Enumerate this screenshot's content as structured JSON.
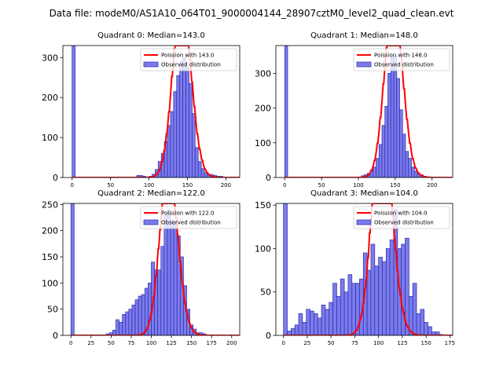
{
  "suptitle": "Data file: modeM0/AS1A10_064T01_9000004144_28907cztM0_level2_quad_clean.evt",
  "colors": {
    "bar_fill": "#7b7bea",
    "bar_edge": "#2b2bb0",
    "poisson_line": "#ff0000",
    "axes": "#000000"
  },
  "chart_data": [
    {
      "type": "bar",
      "title": "Quadrant 0: Median=143.0",
      "xlim": [
        -12,
        218
      ],
      "ylim": [
        0,
        330
      ],
      "xticks": [
        0,
        50,
        100,
        150,
        200
      ],
      "yticks": [
        0,
        100,
        200,
        300
      ],
      "bin_width": 4,
      "bins": [
        [
          0,
          330
        ],
        [
          84,
          5
        ],
        [
          88,
          5
        ],
        [
          92,
          3
        ],
        [
          100,
          3
        ],
        [
          104,
          8
        ],
        [
          108,
          20
        ],
        [
          112,
          40
        ],
        [
          116,
          60
        ],
        [
          120,
          90
        ],
        [
          124,
          130
        ],
        [
          128,
          165
        ],
        [
          132,
          215
        ],
        [
          136,
          255
        ],
        [
          140,
          290
        ],
        [
          144,
          300
        ],
        [
          148,
          275
        ],
        [
          152,
          235
        ],
        [
          156,
          160
        ],
        [
          160,
          75
        ],
        [
          164,
          40
        ],
        [
          168,
          22
        ],
        [
          172,
          12
        ],
        [
          176,
          8
        ],
        [
          180,
          7
        ],
        [
          184,
          5
        ],
        [
          188,
          3
        ],
        [
          192,
          3
        ],
        [
          196,
          1
        ]
      ],
      "poisson_mu": 143.0,
      "poisson_scale": 13300,
      "legend": [
        "Poission with 143.0",
        "Observed distribution"
      ]
    },
    {
      "type": "bar",
      "title": "Quadrant 1: Median=148.0",
      "xlim": [
        -12,
        228
      ],
      "ylim": [
        0,
        380
      ],
      "xticks": [
        0,
        50,
        100,
        150,
        200
      ],
      "yticks": [
        0,
        100,
        200,
        300
      ],
      "bin_width": 4,
      "bins": [
        [
          0,
          380
        ],
        [
          104,
          5
        ],
        [
          108,
          8
        ],
        [
          112,
          12
        ],
        [
          116,
          20
        ],
        [
          120,
          30
        ],
        [
          124,
          55
        ],
        [
          128,
          95
        ],
        [
          132,
          150
        ],
        [
          136,
          205
        ],
        [
          140,
          300
        ],
        [
          144,
          345
        ],
        [
          148,
          350
        ],
        [
          152,
          285
        ],
        [
          156,
          195
        ],
        [
          160,
          125
        ],
        [
          164,
          75
        ],
        [
          168,
          55
        ],
        [
          172,
          30
        ],
        [
          176,
          18
        ],
        [
          180,
          10
        ],
        [
          184,
          8
        ],
        [
          188,
          4
        ],
        [
          192,
          2
        ]
      ],
      "poisson_mu": 148.0,
      "poisson_scale": 15500,
      "legend": [
        "Poission with 148.0",
        "Observed distribution"
      ]
    },
    {
      "type": "bar",
      "title": "Quadrant 2: Median=122.0",
      "xlim": [
        -10,
        210
      ],
      "ylim": [
        0,
        252
      ],
      "xticks": [
        0,
        25,
        50,
        75,
        100,
        125,
        150,
        175,
        200
      ],
      "yticks": [
        0,
        50,
        100,
        150,
        200,
        250
      ],
      "bin_width": 4,
      "bins": [
        [
          0,
          252
        ],
        [
          40,
          1
        ],
        [
          44,
          3
        ],
        [
          48,
          5
        ],
        [
          52,
          10
        ],
        [
          56,
          30
        ],
        [
          60,
          25
        ],
        [
          64,
          40
        ],
        [
          68,
          45
        ],
        [
          72,
          50
        ],
        [
          76,
          58
        ],
        [
          80,
          68
        ],
        [
          84,
          75
        ],
        [
          88,
          78
        ],
        [
          92,
          90
        ],
        [
          96,
          100
        ],
        [
          100,
          140
        ],
        [
          104,
          125
        ],
        [
          108,
          125
        ],
        [
          112,
          170
        ],
        [
          116,
          230
        ],
        [
          120,
          240
        ],
        [
          124,
          220
        ],
        [
          128,
          215
        ],
        [
          132,
          190
        ],
        [
          136,
          150
        ],
        [
          140,
          95
        ],
        [
          144,
          50
        ],
        [
          148,
          20
        ],
        [
          152,
          12
        ],
        [
          156,
          5
        ],
        [
          160,
          5
        ],
        [
          164,
          3
        ]
      ],
      "poisson_mu": 122.0,
      "poisson_scale": 8900,
      "legend": [
        "Poission with 122.0",
        "Observed distribution"
      ]
    },
    {
      "type": "bar",
      "title": "Quadrant 3: Median=104.0",
      "xlim": [
        -8,
        178
      ],
      "ylim": [
        0,
        152
      ],
      "xticks": [
        0,
        25,
        50,
        75,
        100,
        125,
        150,
        175
      ],
      "yticks": [
        0,
        50,
        100,
        150
      ],
      "bin_width": 4,
      "bins": [
        [
          0,
          152
        ],
        [
          4,
          5
        ],
        [
          8,
          8
        ],
        [
          12,
          12
        ],
        [
          16,
          25
        ],
        [
          20,
          15
        ],
        [
          24,
          30
        ],
        [
          28,
          28
        ],
        [
          32,
          25
        ],
        [
          36,
          20
        ],
        [
          40,
          35
        ],
        [
          44,
          30
        ],
        [
          48,
          38
        ],
        [
          52,
          60
        ],
        [
          56,
          45
        ],
        [
          60,
          65
        ],
        [
          64,
          50
        ],
        [
          68,
          70
        ],
        [
          72,
          60
        ],
        [
          76,
          60
        ],
        [
          80,
          65
        ],
        [
          84,
          95
        ],
        [
          88,
          75
        ],
        [
          92,
          105
        ],
        [
          96,
          80
        ],
        [
          100,
          90
        ],
        [
          104,
          85
        ],
        [
          108,
          100
        ],
        [
          112,
          110
        ],
        [
          116,
          145
        ],
        [
          120,
          100
        ],
        [
          124,
          105
        ],
        [
          128,
          112
        ],
        [
          132,
          45
        ],
        [
          136,
          60
        ],
        [
          140,
          25
        ],
        [
          144,
          30
        ],
        [
          148,
          15
        ],
        [
          152,
          10
        ],
        [
          156,
          4
        ],
        [
          160,
          4
        ],
        [
          164,
          1
        ]
      ],
      "poisson_mu": 104.0,
      "poisson_scale": 6600,
      "legend": [
        "Poission with 104.0",
        "Observed distribution"
      ]
    }
  ]
}
